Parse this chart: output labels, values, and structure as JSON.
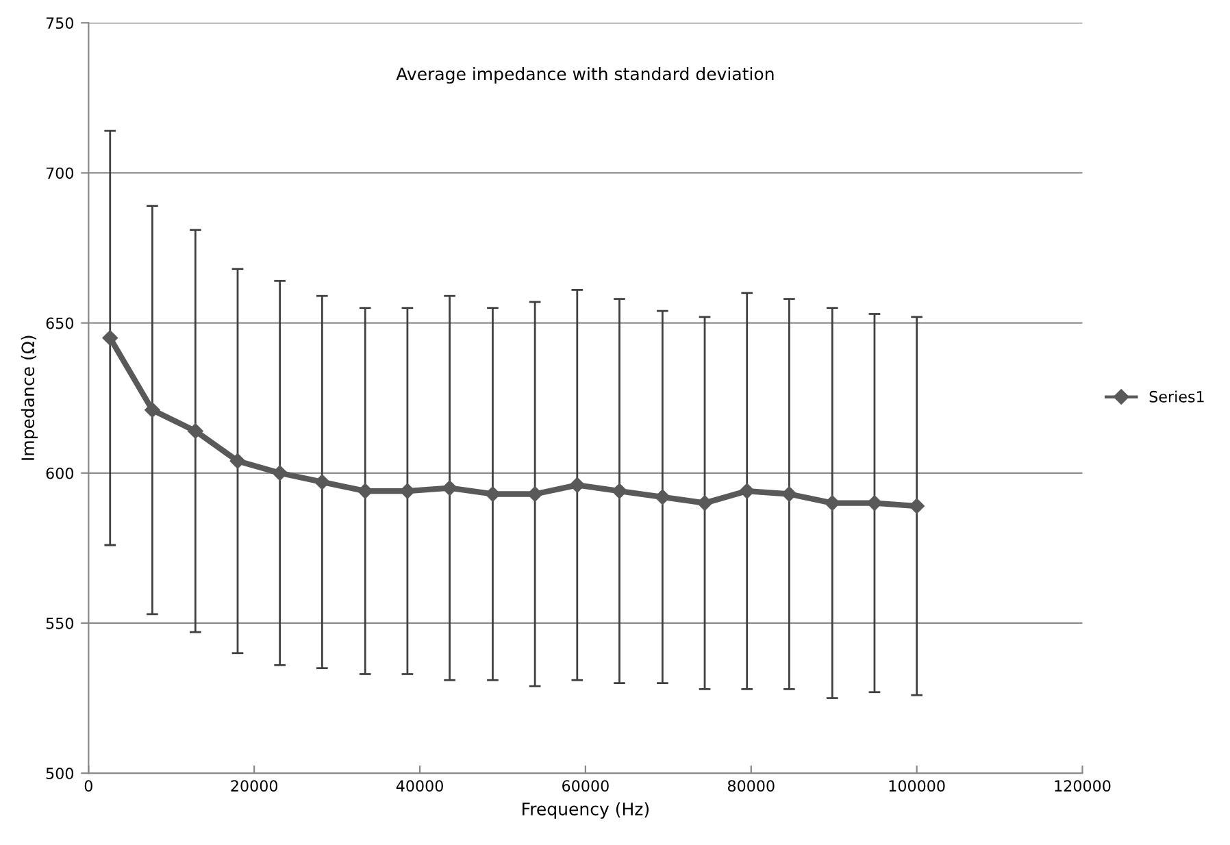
{
  "chart_data": {
    "type": "line",
    "title": "Average impedance with standard deviation",
    "xlabel": "Frequency (Hz)",
    "ylabel": "Impedance (Ω)",
    "x": [
      2600,
      7700,
      12900,
      18000,
      23100,
      28200,
      33400,
      38500,
      43600,
      48800,
      53900,
      59000,
      64100,
      69300,
      74400,
      79500,
      84600,
      89800,
      94900,
      100000
    ],
    "series": [
      {
        "name": "Series1",
        "color": "#595959",
        "values": [
          645,
          621,
          614,
          604,
          600,
          597,
          594,
          594,
          595,
          593,
          593,
          596,
          594,
          592,
          590,
          594,
          593,
          590,
          590,
          589
        ],
        "errors": [
          69,
          68,
          67,
          64,
          64,
          62,
          61,
          61,
          64,
          62,
          64,
          65,
          64,
          62,
          62,
          66,
          65,
          65,
          63,
          63
        ]
      }
    ],
    "xlim": [
      0,
      120000
    ],
    "xticks": [
      0,
      20000,
      40000,
      60000,
      80000,
      100000,
      120000
    ],
    "ylim": [
      500,
      750
    ],
    "yticks": [
      500,
      550,
      600,
      650,
      700,
      750
    ],
    "grid": "y",
    "legend": "right",
    "marker": "diamond",
    "line_style": "solid"
  }
}
